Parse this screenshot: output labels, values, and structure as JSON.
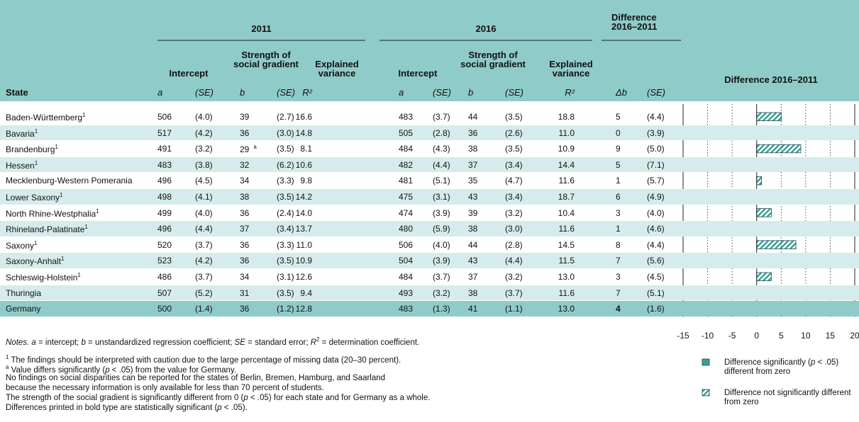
{
  "header": {
    "groups": [
      "2011",
      "2016",
      "Difference 2016–2011"
    ],
    "subgroups": [
      "Intercept",
      "Strength of social gradient",
      "Explained variance",
      "Intercept",
      "Strength of social gradient",
      "Explained variance"
    ],
    "columns": [
      "State",
      "a",
      "(SE)",
      "b",
      "(SE)",
      "R²",
      "a",
      "(SE)",
      "b",
      "(SE)",
      "R²",
      "Δb",
      "(SE)"
    ],
    "chart_title": "Difference 2016–2011"
  },
  "table": {
    "rows": [
      {
        "state": "Baden-Württemberg",
        "note": "1",
        "cells": [
          "506",
          "(4.0)",
          "39",
          "(2.7)",
          "16.6",
          "483",
          "(3.7)",
          "44",
          "(3.5)",
          "18.8"
        ],
        "delta_b": 5,
        "delta_se": "(4.4)"
      },
      {
        "state": "Bavaria",
        "note": "1",
        "cells": [
          "517",
          "(4.2)",
          "36",
          "(3.0)",
          "14.8",
          "505",
          "(2.8)",
          "36",
          "(2.6)",
          "11.0"
        ],
        "delta_b": 0,
        "delta_se": "(3.9)"
      },
      {
        "state": "Brandenburg",
        "note": "1",
        "cells": [
          "491",
          "(3.2)",
          "29",
          "(3.5)",
          "8.1",
          "484",
          "(4.3)",
          "38",
          "(3.5)",
          "10.9"
        ],
        "b_note": "a",
        "delta_b": 9,
        "delta_se": "(5.0)"
      },
      {
        "state": "Hessen",
        "note": "1",
        "cells": [
          "483",
          "(3.8)",
          "32",
          "(6.2)",
          "10.6",
          "482",
          "(4.4)",
          "37",
          "(3.4)",
          "14.4"
        ],
        "delta_b": 5,
        "delta_se": "(7.1)"
      },
      {
        "state": "Mecklenburg-Western Pomerania",
        "cells": [
          "496",
          "(4.5)",
          "34",
          "(3.3)",
          "9.8",
          "481",
          "(5.1)",
          "35",
          "(4.7)",
          "11.6"
        ],
        "delta_b": 1,
        "delta_se": "(5.7)"
      },
      {
        "state": "Lower Saxony",
        "note": "1",
        "cells": [
          "498",
          "(4.1)",
          "38",
          "(3.5)",
          "14.2",
          "475",
          "(3.1)",
          "43",
          "(3.4)",
          "18.7"
        ],
        "delta_b": 6,
        "delta_se": "(4.9)"
      },
      {
        "state": "North Rhine-Westphalia",
        "note": "1",
        "cells": [
          "499",
          "(4.0)",
          "36",
          "(2.4)",
          "14.0",
          "474",
          "(3.9)",
          "39",
          "(3.2)",
          "10.4"
        ],
        "delta_b": 3,
        "delta_se": "(4.0)"
      },
      {
        "state": "Rhineland-Palatinate",
        "note": "1",
        "cells": [
          "496",
          "(4.4)",
          "37",
          "(3.4)",
          "13.7",
          "480",
          "(5.9)",
          "38",
          "(3.0)",
          "11.6"
        ],
        "delta_b": 1,
        "delta_se": "(4.6)"
      },
      {
        "state": "Saxony",
        "note": "1",
        "cells": [
          "520",
          "(3.7)",
          "36",
          "(3.3)",
          "11.0",
          "506",
          "(4.0)",
          "44",
          "(2.8)",
          "14.5"
        ],
        "delta_b": 8,
        "delta_se": "(4.4)"
      },
      {
        "state": "Saxony-Anhalt",
        "note": "1",
        "cells": [
          "523",
          "(4.2)",
          "36",
          "(3.5)",
          "10.9",
          "504",
          "(3.9)",
          "43",
          "(4.4)",
          "11.5"
        ],
        "delta_b": 7,
        "delta_se": "(5.6)"
      },
      {
        "state": "Schleswig-Holstein",
        "note": "1",
        "cells": [
          "486",
          "(3.7)",
          "34",
          "(3.1)",
          "12.6",
          "484",
          "(3.7)",
          "37",
          "(3.2)",
          "13.0"
        ],
        "delta_b": 3,
        "delta_se": "(4.5)"
      },
      {
        "state": "Thuringia",
        "cells": [
          "507",
          "(5.2)",
          "31",
          "(3.5)",
          "9.4",
          "493",
          "(3.2)",
          "38",
          "(3.7)",
          "11.6"
        ],
        "delta_b": 7,
        "delta_se": "(5.1)"
      },
      {
        "state": "Germany",
        "cells": [
          "500",
          "(1.4)",
          "36",
          "(1.2)",
          "12.8",
          "483",
          "(1.3)",
          "41",
          "(1.1)",
          "13.0"
        ],
        "delta_b": 4,
        "delta_se": "(1.6)",
        "significant": true,
        "total": true
      }
    ]
  },
  "chart": {
    "xlim": [
      -15,
      20
    ],
    "xticks": [
      -15,
      -10,
      -5,
      0,
      5,
      10,
      15,
      20
    ]
  },
  "legend": [
    {
      "significant": true,
      "text": [
        "Difference significantly (",
        {
          "i": "p"
        },
        " < .05) different from zero"
      ]
    },
    {
      "significant": false,
      "text": [
        "Difference not significantly different from zero"
      ]
    }
  ],
  "notes": [
    [
      {
        "i": "Notes. a"
      },
      " = intercept; ",
      {
        "i": "b"
      },
      " = unstandardized regression coefficient; ",
      {
        "i": "SE"
      },
      " = standard error; ",
      {
        "i": "R"
      },
      {
        "sup": "2"
      },
      " = determination coefficient."
    ],
    [
      {
        "sup": "1"
      },
      " The findings should be interpreted with caution due to the large percentage of missing data (20–30 percent)."
    ],
    [
      {
        "sup": "a"
      },
      " Value differs significantly (",
      {
        "i": "p"
      },
      " < .05) from the value for Germany."
    ],
    [
      "No findings on social disparities can be reported for the states of Berlin, Bremen, Hamburg, and Saarland"
    ],
    [
      "because the necessary information is only available for less than 70 percent of students."
    ],
    [
      "The strength of the social gradient is significantly different from 0 (",
      {
        "i": "p"
      },
      " < .05) for each state and for Germany as a whole."
    ],
    [
      "Differences printed in bold type are statistically significant (",
      {
        "i": "p"
      },
      " < .05)."
    ]
  ]
}
